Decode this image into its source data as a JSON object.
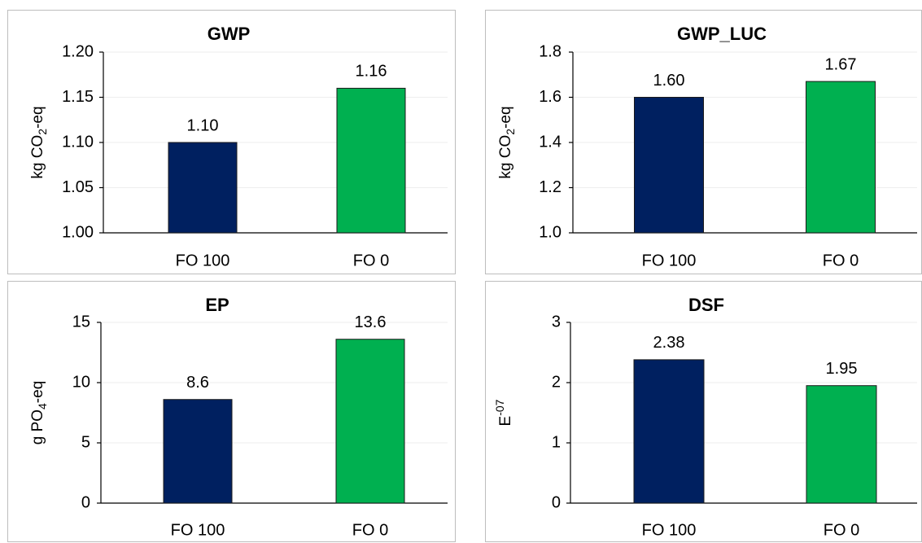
{
  "colors": {
    "fo100": "#002060",
    "fo0": "#00b050",
    "bar_edge": "#1a1a1a"
  },
  "chart_data": [
    {
      "type": "bar",
      "title": "GWP",
      "ylabel": {
        "pre": "kg CO",
        "sub": "2",
        "sup": "",
        "post": "-eq"
      },
      "categories": [
        "FO 100",
        "FO 0"
      ],
      "values": [
        1.1,
        1.16
      ],
      "data_labels": [
        "1.10",
        "1.16"
      ],
      "ylim": [
        1.0,
        1.2
      ],
      "ticks": [
        "1.00",
        "1.05",
        "1.10",
        "1.15",
        "1.20"
      ],
      "grid": true,
      "legend": "none"
    },
    {
      "type": "bar",
      "title": "GWP_LUC",
      "ylabel": {
        "pre": "kg CO",
        "sub": "2",
        "sup": "",
        "post": "-eq"
      },
      "categories": [
        "FO 100",
        "FO 0"
      ],
      "values": [
        1.6,
        1.67
      ],
      "data_labels": [
        "1.60",
        "1.67"
      ],
      "ylim": [
        1.0,
        1.8
      ],
      "ticks": [
        "1.0",
        "1.2",
        "1.4",
        "1.6",
        "1.8"
      ],
      "grid": true,
      "legend": "none"
    },
    {
      "type": "bar",
      "title": "EP",
      "ylabel": {
        "pre": "g PO",
        "sub": "4",
        "sup": "",
        "post": "-eq"
      },
      "categories": [
        "FO 100",
        "FO 0"
      ],
      "values": [
        8.6,
        13.6
      ],
      "data_labels": [
        "8.6",
        "13.6"
      ],
      "ylim": [
        0,
        15
      ],
      "ticks": [
        "0",
        "5",
        "10",
        "15"
      ],
      "grid": true,
      "legend": "none"
    },
    {
      "type": "bar",
      "title": "DSF",
      "ylabel": {
        "pre": "E",
        "sub": "",
        "sup": "-07",
        "post": ""
      },
      "categories": [
        "FO 100",
        "FO 0"
      ],
      "values": [
        2.38,
        1.95
      ],
      "data_labels": [
        "2.38",
        "1.95"
      ],
      "ylim": [
        0,
        3
      ],
      "ticks": [
        "0",
        "1",
        "2",
        "3"
      ],
      "grid": true,
      "legend": "none"
    }
  ]
}
